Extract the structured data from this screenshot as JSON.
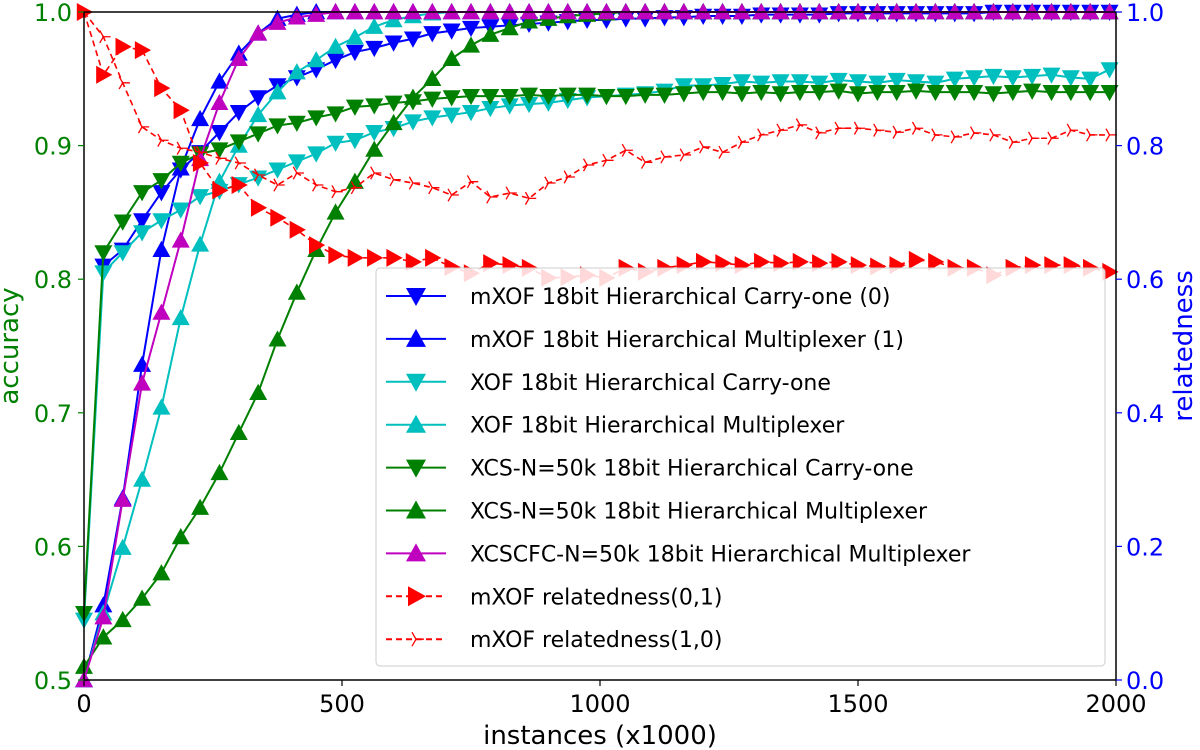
{
  "chart_data": {
    "type": "line",
    "xlabel": "instances (x1000)",
    "ylabel_left": "accuracy",
    "ylabel_right": "relatedness",
    "xlim": [
      0,
      2000
    ],
    "ylim_left": [
      0.5,
      1.0
    ],
    "ylim_right": [
      0.0,
      1.0
    ],
    "xticks": [
      "0",
      "500",
      "1000",
      "1500",
      "2000"
    ],
    "yticks_left": [
      "0.5",
      "0.6",
      "0.7",
      "0.8",
      "0.9",
      "1.0"
    ],
    "yticks_right": [
      "0.0",
      "0.2",
      "0.4",
      "0.6",
      "0.8",
      "1.0"
    ],
    "left_axis_color": "#008000",
    "right_axis_color": "#0000ff",
    "grid": false,
    "legend_position": "lower-right",
    "x": [
      0,
      37.5,
      75,
      112.5,
      150,
      187.5,
      225,
      262.5,
      300,
      337.5,
      375,
      412.5,
      450,
      487.5,
      525,
      562.5,
      600,
      637.5,
      675,
      712.5,
      750,
      787.5,
      825,
      862.5,
      900,
      937.5,
      975,
      1012.5,
      1050,
      1087.5,
      1125,
      1162.5,
      1200,
      1237.5,
      1275,
      1312.5,
      1350,
      1387.5,
      1425,
      1462.5,
      1500,
      1537.5,
      1575,
      1612.5,
      1650,
      1687.5,
      1725,
      1762.5,
      1800,
      1837.5,
      1875,
      1912.5,
      1950,
      1987.5
    ],
    "series": [
      {
        "name": "mXOF 18bit Hierarchical Carry-one (0)",
        "axis": "left",
        "color": "#0000ff",
        "marker": "triangle-down",
        "linestyle": "solid",
        "values": [
          null,
          0.81,
          0.822,
          0.844,
          0.865,
          0.882,
          0.895,
          0.91,
          0.925,
          0.936,
          0.945,
          0.951,
          0.957,
          0.964,
          0.97,
          0.973,
          0.977,
          0.98,
          0.984,
          0.986,
          0.988,
          0.989,
          0.99,
          0.991,
          0.992,
          0.993,
          0.994,
          0.994,
          0.995,
          0.995,
          0.996,
          0.996,
          0.997,
          0.997,
          0.997,
          0.998,
          0.998,
          0.998,
          0.998,
          0.999,
          0.999,
          0.999,
          0.999,
          0.999,
          0.999,
          0.999,
          0.999,
          1,
          1,
          1,
          1,
          1,
          1,
          1
        ]
      },
      {
        "name": "mXOF 18bit Hierarchical Multiplexer (1)",
        "axis": "left",
        "color": "#0000ff",
        "marker": "triangle-up",
        "linestyle": "solid",
        "values": [
          0.5,
          0.556,
          0.636,
          0.736,
          0.822,
          0.883,
          0.92,
          0.948,
          0.969,
          0.984,
          0.995,
          0.998,
          1,
          1,
          1,
          1,
          1,
          1,
          1,
          1,
          1,
          1,
          1,
          1,
          1,
          1,
          1,
          1,
          1,
          1,
          1,
          1,
          1,
          1,
          1,
          1,
          1,
          1,
          1,
          1,
          1,
          1,
          1,
          1,
          1,
          1,
          1,
          1,
          1,
          1,
          1,
          1,
          1,
          1
        ]
      },
      {
        "name": "XOF 18bit Hierarchical Carry-one",
        "axis": "left",
        "color": "#00bfbf",
        "marker": "triangle-down",
        "linestyle": "solid",
        "values": [
          0.545,
          0.805,
          0.82,
          0.835,
          0.844,
          0.852,
          0.862,
          0.866,
          0.871,
          0.876,
          0.882,
          0.888,
          0.894,
          0.902,
          0.904,
          0.91,
          0.913,
          0.918,
          0.921,
          0.923,
          0.925,
          0.928,
          0.93,
          0.931,
          0.932,
          0.934,
          0.936,
          0.937,
          0.938,
          0.939,
          0.941,
          0.945,
          0.945,
          0.946,
          0.948,
          0.947,
          0.948,
          0.948,
          0.947,
          0.949,
          0.948,
          0.947,
          0.949,
          0.948,
          0.947,
          0.95,
          0.951,
          0.952,
          0.951,
          0.952,
          0.953,
          0.951,
          0.95,
          0.957
        ]
      },
      {
        "name": "XOF 18bit Hierarchical Multiplexer",
        "axis": "left",
        "color": "#00bfbf",
        "marker": "triangle-up",
        "linestyle": "solid",
        "values": [
          0.5,
          0.55,
          0.599,
          0.65,
          0.704,
          0.771,
          0.826,
          0.873,
          0.9,
          0.923,
          0.94,
          0.955,
          0.964,
          0.974,
          0.981,
          0.989,
          0.994,
          0.997,
          0.999,
          1,
          1,
          1,
          1,
          1,
          1,
          1,
          1,
          1,
          1,
          1,
          1,
          1,
          1,
          1,
          1,
          1,
          1,
          1,
          1,
          1,
          1,
          1,
          1,
          1,
          1,
          1,
          1,
          1,
          1,
          1,
          1,
          1,
          1,
          1
        ]
      },
      {
        "name": "XCS-N=50k 18bit Hierarchical Carry-one",
        "axis": "left",
        "color": "#008000",
        "marker": "triangle-down",
        "linestyle": "solid",
        "values": [
          0.55,
          0.82,
          0.843,
          0.865,
          0.874,
          0.887,
          0.894,
          0.897,
          0.903,
          0.909,
          0.915,
          0.917,
          0.921,
          0.924,
          0.929,
          0.93,
          0.932,
          0.933,
          0.935,
          0.936,
          0.937,
          0.937,
          0.937,
          0.938,
          0.937,
          0.938,
          0.938,
          0.937,
          0.937,
          0.938,
          0.938,
          0.939,
          0.94,
          0.94,
          0.939,
          0.94,
          0.939,
          0.94,
          0.94,
          0.941,
          0.939,
          0.94,
          0.94,
          0.941,
          0.94,
          0.94,
          0.94,
          0.939,
          0.94,
          0.941,
          0.94,
          0.94,
          0.94,
          0.94
        ]
      },
      {
        "name": "XCS-N=50k 18bit Hierarchical Multiplexer",
        "axis": "left",
        "color": "#008000",
        "marker": "triangle-up",
        "linestyle": "solid",
        "values": [
          0.51,
          0.532,
          0.545,
          0.561,
          0.58,
          0.607,
          0.629,
          0.655,
          0.685,
          0.715,
          0.755,
          0.79,
          0.822,
          0.85,
          0.873,
          0.897,
          0.917,
          0.936,
          0.95,
          0.965,
          0.975,
          0.983,
          0.988,
          0.993,
          0.995,
          0.997,
          0.998,
          0.999,
          1,
          1,
          1,
          1,
          1,
          1,
          1,
          1,
          1,
          1,
          1,
          1,
          1,
          1,
          1,
          1,
          1,
          1,
          1,
          1,
          1,
          1,
          1,
          1,
          1,
          1
        ]
      },
      {
        "name": "XCSCFC-N=50k 18bit Hierarchical Multiplexer",
        "axis": "left",
        "color": "#bf00bf",
        "marker": "triangle-up",
        "linestyle": "solid",
        "values": [
          0.5,
          0.547,
          0.635,
          0.722,
          0.775,
          0.829,
          0.89,
          0.932,
          0.965,
          0.984,
          0.992,
          0.996,
          0.998,
          1,
          1,
          1,
          1,
          1,
          1,
          1,
          1,
          1,
          1,
          1,
          1,
          1,
          1,
          1,
          1,
          1,
          1,
          1,
          1,
          1,
          1,
          1,
          1,
          1,
          1,
          1,
          1,
          1,
          1,
          1,
          1,
          1,
          1,
          1,
          1,
          1,
          1,
          1,
          1,
          1
        ]
      },
      {
        "name": "mXOF relatedness(0,1)",
        "axis": "right",
        "color": "#ff0000",
        "marker": "triangle-right",
        "linestyle": "dashed",
        "values": [
          1.0,
          0.906,
          0.948,
          0.943,
          0.886,
          0.853,
          0.774,
          0.733,
          0.741,
          0.707,
          0.692,
          0.674,
          0.651,
          0.636,
          0.632,
          0.632,
          0.632,
          0.626,
          0.632,
          0.618,
          0.609,
          0.624,
          0.621,
          0.617,
          0.602,
          0.603,
          0.606,
          0.602,
          0.617,
          0.611,
          0.617,
          0.621,
          0.626,
          0.624,
          0.621,
          0.626,
          0.624,
          0.626,
          0.624,
          0.626,
          0.621,
          0.619,
          0.621,
          0.629,
          0.626,
          0.617,
          0.617,
          0.606,
          0.617,
          0.621,
          0.621,
          0.621,
          0.617,
          0.611
        ]
      },
      {
        "name": "mXOF relatedness(1,0)",
        "axis": "right",
        "color": "#ff0000",
        "marker": "tri-right",
        "linestyle": "dashed",
        "values": [
          1.0,
          0.963,
          0.894,
          0.828,
          0.808,
          0.796,
          0.79,
          0.781,
          0.774,
          0.756,
          0.741,
          0.759,
          0.741,
          0.731,
          0.737,
          0.759,
          0.749,
          0.744,
          0.737,
          0.726,
          0.746,
          0.723,
          0.729,
          0.721,
          0.744,
          0.753,
          0.771,
          0.778,
          0.793,
          0.775,
          0.783,
          0.786,
          0.798,
          0.79,
          0.805,
          0.816,
          0.823,
          0.831,
          0.819,
          0.826,
          0.826,
          0.823,
          0.82,
          0.826,
          0.816,
          0.813,
          0.819,
          0.816,
          0.805,
          0.811,
          0.811,
          0.823,
          0.816,
          0.816
        ]
      }
    ]
  }
}
